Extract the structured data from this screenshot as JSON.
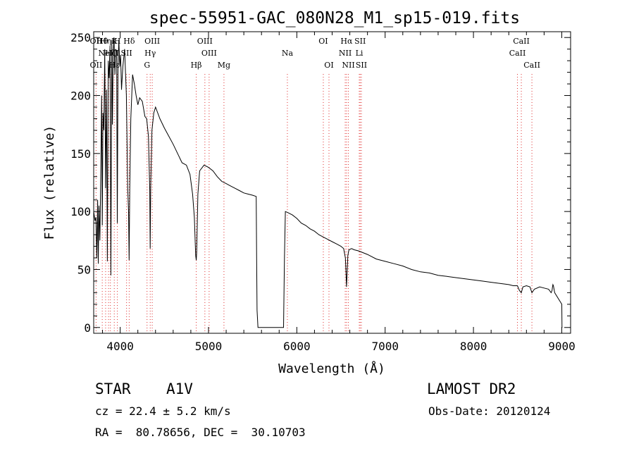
{
  "chart_data": {
    "type": "line",
    "title": "spec-55951-GAC_080N28_M1_sp15-019.fits",
    "xlabel": "Wavelength (Å)",
    "ylabel": "Flux (relative)",
    "xlim": [
      3700,
      9100
    ],
    "ylim": [
      -5,
      255
    ],
    "xticks": [
      4000,
      5000,
      6000,
      7000,
      8000,
      9000
    ],
    "yticks": [
      0,
      50,
      100,
      150,
      200,
      250
    ],
    "grid": false,
    "series": [
      {
        "x": [
          3700,
          3715,
          3725,
          3735,
          3745,
          3752,
          3760,
          3770,
          3780,
          3790,
          3797,
          3805,
          3815,
          3825,
          3835,
          3845,
          3855,
          3865,
          3875,
          3885,
          3895,
          3905,
          3912,
          3920,
          3930,
          3940,
          3950,
          3960,
          3967,
          3975,
          3985,
          3995,
          4005,
          4015,
          4030,
          4050,
          4070,
          4085,
          4095,
          4101,
          4108,
          4120,
          4140,
          4160,
          4180,
          4200,
          4220,
          4250,
          4280,
          4300,
          4320,
          4335,
          4340,
          4345,
          4360,
          4380,
          4400,
          4450,
          4500,
          4550,
          4600,
          4650,
          4700,
          4750,
          4790,
          4820,
          4840,
          4850,
          4855,
          4861,
          4866,
          4872,
          4880,
          4900,
          4950,
          5000,
          5050,
          5100,
          5150,
          5200,
          5250,
          5300,
          5350,
          5400,
          5450,
          5500,
          5540,
          5545,
          5550,
          5560,
          5700,
          5800,
          5850,
          5860,
          5870,
          5900,
          5950,
          6000,
          6050,
          6100,
          6150,
          6200,
          6250,
          6300,
          6350,
          6400,
          6450,
          6500,
          6530,
          6550,
          6556,
          6563,
          6570,
          6578,
          6590,
          6620,
          6650,
          6700,
          6800,
          6900,
          7000,
          7100,
          7200,
          7300,
          7400,
          7500,
          7600,
          7700,
          7800,
          7900,
          8000,
          8100,
          8200,
          8300,
          8400,
          8450,
          8498,
          8520,
          8542,
          8560,
          8600,
          8640,
          8662,
          8690,
          8750,
          8800,
          8850,
          8880,
          8890,
          8895,
          8900,
          8905,
          8920,
          9000,
          9003,
          9006
        ],
        "values": [
          100,
          92,
          95,
          60,
          110,
          55,
          105,
          75,
          130,
          200,
          88,
          185,
          170,
          240,
          120,
          205,
          57,
          230,
          215,
          243,
          45,
          248,
          175,
          235,
          250,
          218,
          240,
          238,
          90,
          225,
          248,
          225,
          235,
          205,
          225,
          240,
          200,
          120,
          100,
          58,
          120,
          180,
          218,
          210,
          200,
          192,
          198,
          195,
          182,
          180,
          165,
          118,
          68,
          120,
          170,
          185,
          190,
          180,
          172,
          165,
          158,
          150,
          142,
          140,
          132,
          115,
          95,
          72,
          62,
          58,
          65,
          85,
          115,
          135,
          140,
          138,
          135,
          130,
          126,
          124,
          122,
          120,
          118,
          116,
          115,
          114,
          113,
          60,
          15,
          0,
          0,
          0,
          0,
          60,
          100,
          99,
          97,
          94,
          90,
          88,
          85,
          83,
          80,
          78,
          76,
          74,
          72,
          70,
          68,
          60,
          48,
          35,
          48,
          62,
          67,
          68,
          67,
          66,
          63,
          59,
          57,
          55,
          53,
          50,
          48,
          47,
          45,
          44,
          43,
          42,
          41,
          40,
          39,
          38,
          37,
          36,
          36,
          32,
          30,
          35,
          36,
          35,
          30,
          33,
          35,
          34,
          33,
          30,
          32,
          35,
          37,
          36,
          30,
          20,
          0,
          0
        ]
      }
    ],
    "line_markers": [
      {
        "x": 3727,
        "top": "OII",
        "bottom": "OII"
      },
      {
        "x": 3797,
        "top": "Hθ"
      },
      {
        "x": 3835,
        "top": "Hη"
      },
      {
        "x": 3868,
        "mid": "NeIII"
      },
      {
        "x": 3889,
        "mid": "Hζ"
      },
      {
        "x": 3933,
        "top": "K",
        "bottom": "Hε"
      },
      {
        "x": 3968,
        "top": "H"
      },
      {
        "x": 4072,
        "mid": "SII"
      },
      {
        "x": 4102,
        "top": "Hδ"
      },
      {
        "x": 4304,
        "bottom": "G"
      },
      {
        "x": 4340,
        "mid": "Hγ"
      },
      {
        "x": 4363,
        "top": "OIII"
      },
      {
        "x": 4861,
        "bottom": "Hβ"
      },
      {
        "x": 4959,
        "top": "OIII"
      },
      {
        "x": 5007,
        "mid": "OIII"
      },
      {
        "x": 5175,
        "bottom": "Mg"
      },
      {
        "x": 5893,
        "mid": "Na"
      },
      {
        "x": 6300,
        "top": "OI"
      },
      {
        "x": 6364,
        "bottom": "OI"
      },
      {
        "x": 6548,
        "mid": "NII"
      },
      {
        "x": 6563,
        "top": "Hα"
      },
      {
        "x": 6584,
        "bottom": "NII"
      },
      {
        "x": 6707,
        "mid": "Li"
      },
      {
        "x": 6717,
        "top": "SII"
      },
      {
        "x": 6731,
        "bottom": "SII"
      },
      {
        "x": 8498,
        "mid": "CaII"
      },
      {
        "x": 8542,
        "top": "CaII"
      },
      {
        "x": 8662,
        "bottom": "CaII"
      }
    ]
  },
  "info": {
    "object_type": "STAR",
    "subclass": "A1V",
    "survey": "LAMOST DR2",
    "redshift_line": "cz = 22.4 ± 5.2 km/s",
    "obs_date_line": "Obs-Date: 20120124",
    "coords_line": "RA =  80.78656, DEC =  30.10703"
  }
}
